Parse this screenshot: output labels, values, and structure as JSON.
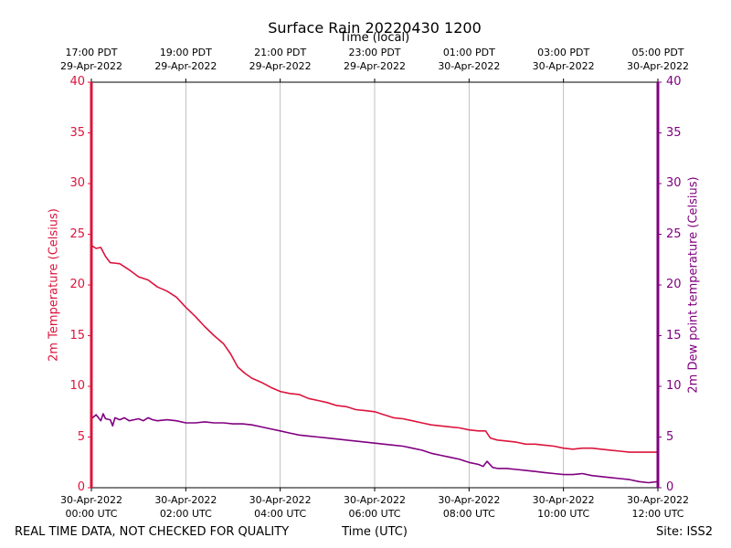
{
  "chart_data": {
    "type": "line",
    "title": "Surface Rain 20220430 1200",
    "top_axis_title": "Time (local)",
    "xlabel": "Time (UTC)",
    "ylabel_left": "2m Temperature (Celsius)",
    "ylabel_right": "2m Dew point temperature (Celsius)",
    "x_unit": "hours since 30-Apr-2022 00:00 UTC",
    "xlim": [
      0,
      12
    ],
    "ylim": [
      0,
      40
    ],
    "yticks": [
      "0",
      "5",
      "10",
      "15",
      "20",
      "25",
      "30",
      "35",
      "40"
    ],
    "grid": "vertical",
    "bottom_ticks": [
      {
        "x": 0,
        "date": "30-Apr-2022",
        "time": "00:00 UTC"
      },
      {
        "x": 2,
        "date": "30-Apr-2022",
        "time": "02:00 UTC"
      },
      {
        "x": 4,
        "date": "30-Apr-2022",
        "time": "04:00 UTC"
      },
      {
        "x": 6,
        "date": "30-Apr-2022",
        "time": "06:00 UTC"
      },
      {
        "x": 8,
        "date": "30-Apr-2022",
        "time": "08:00 UTC"
      },
      {
        "x": 10,
        "date": "30-Apr-2022",
        "time": "10:00 UTC"
      },
      {
        "x": 12,
        "date": "30-Apr-2022",
        "time": "12:00 UTC"
      }
    ],
    "top_ticks": [
      {
        "x": 0,
        "time": "17:00 PDT",
        "date": "29-Apr-2022"
      },
      {
        "x": 2,
        "time": "19:00 PDT",
        "date": "29-Apr-2022"
      },
      {
        "x": 4,
        "time": "21:00 PDT",
        "date": "29-Apr-2022"
      },
      {
        "x": 6,
        "time": "23:00 PDT",
        "date": "29-Apr-2022"
      },
      {
        "x": 8,
        "time": "01:00 PDT",
        "date": "30-Apr-2022"
      },
      {
        "x": 10,
        "time": "03:00 PDT",
        "date": "30-Apr-2022"
      },
      {
        "x": 12,
        "time": "05:00 PDT",
        "date": "30-Apr-2022"
      }
    ],
    "series": [
      {
        "name": "2m Temperature",
        "axis": "left",
        "color": "#dc143c",
        "points": [
          [
            0,
            23.9
          ],
          [
            0.1,
            23.6
          ],
          [
            0.2,
            23.7
          ],
          [
            0.3,
            22.8
          ],
          [
            0.4,
            22.2
          ],
          [
            0.6,
            22.1
          ],
          [
            0.8,
            21.5
          ],
          [
            1.0,
            20.8
          ],
          [
            1.2,
            20.5
          ],
          [
            1.4,
            19.8
          ],
          [
            1.6,
            19.4
          ],
          [
            1.8,
            18.8
          ],
          [
            2.0,
            17.8
          ],
          [
            2.2,
            16.9
          ],
          [
            2.4,
            15.9
          ],
          [
            2.6,
            15.0
          ],
          [
            2.8,
            14.2
          ],
          [
            2.95,
            13.2
          ],
          [
            3.1,
            11.9
          ],
          [
            3.25,
            11.3
          ],
          [
            3.4,
            10.8
          ],
          [
            3.6,
            10.4
          ],
          [
            3.8,
            9.9
          ],
          [
            4.0,
            9.5
          ],
          [
            4.2,
            9.3
          ],
          [
            4.4,
            9.2
          ],
          [
            4.6,
            8.8
          ],
          [
            4.8,
            8.6
          ],
          [
            5.0,
            8.4
          ],
          [
            5.2,
            8.1
          ],
          [
            5.4,
            8.0
          ],
          [
            5.6,
            7.7
          ],
          [
            5.8,
            7.6
          ],
          [
            6.0,
            7.5
          ],
          [
            6.2,
            7.2
          ],
          [
            6.4,
            6.9
          ],
          [
            6.6,
            6.8
          ],
          [
            6.8,
            6.6
          ],
          [
            7.0,
            6.4
          ],
          [
            7.2,
            6.2
          ],
          [
            7.4,
            6.1
          ],
          [
            7.6,
            6.0
          ],
          [
            7.8,
            5.9
          ],
          [
            8.0,
            5.7
          ],
          [
            8.2,
            5.6
          ],
          [
            8.35,
            5.6
          ],
          [
            8.45,
            4.9
          ],
          [
            8.6,
            4.7
          ],
          [
            8.8,
            4.6
          ],
          [
            9.0,
            4.5
          ],
          [
            9.2,
            4.3
          ],
          [
            9.4,
            4.3
          ],
          [
            9.6,
            4.2
          ],
          [
            9.8,
            4.1
          ],
          [
            10.0,
            3.9
          ],
          [
            10.2,
            3.8
          ],
          [
            10.4,
            3.9
          ],
          [
            10.6,
            3.9
          ],
          [
            10.8,
            3.8
          ],
          [
            11.0,
            3.7
          ],
          [
            11.2,
            3.6
          ],
          [
            11.4,
            3.5
          ],
          [
            11.6,
            3.5
          ],
          [
            11.8,
            3.5
          ],
          [
            12.0,
            3.5
          ]
        ]
      },
      {
        "name": "2m Dew point temperature",
        "axis": "right",
        "color": "#800080",
        "points": [
          [
            0,
            6.8
          ],
          [
            0.1,
            7.2
          ],
          [
            0.15,
            6.9
          ],
          [
            0.2,
            6.6
          ],
          [
            0.25,
            7.3
          ],
          [
            0.3,
            6.8
          ],
          [
            0.4,
            6.7
          ],
          [
            0.45,
            6.1
          ],
          [
            0.5,
            6.9
          ],
          [
            0.6,
            6.7
          ],
          [
            0.7,
            6.9
          ],
          [
            0.8,
            6.6
          ],
          [
            0.9,
            6.7
          ],
          [
            1.0,
            6.8
          ],
          [
            1.1,
            6.6
          ],
          [
            1.2,
            6.9
          ],
          [
            1.3,
            6.7
          ],
          [
            1.4,
            6.6
          ],
          [
            1.6,
            6.7
          ],
          [
            1.8,
            6.6
          ],
          [
            2.0,
            6.4
          ],
          [
            2.2,
            6.4
          ],
          [
            2.4,
            6.5
          ],
          [
            2.6,
            6.4
          ],
          [
            2.8,
            6.4
          ],
          [
            3.0,
            6.3
          ],
          [
            3.2,
            6.3
          ],
          [
            3.4,
            6.2
          ],
          [
            3.6,
            6.0
          ],
          [
            3.8,
            5.8
          ],
          [
            4.0,
            5.6
          ],
          [
            4.2,
            5.4
          ],
          [
            4.4,
            5.2
          ],
          [
            4.6,
            5.1
          ],
          [
            4.8,
            5.0
          ],
          [
            5.0,
            4.9
          ],
          [
            5.2,
            4.8
          ],
          [
            5.4,
            4.7
          ],
          [
            5.6,
            4.6
          ],
          [
            5.8,
            4.5
          ],
          [
            6.0,
            4.4
          ],
          [
            6.2,
            4.3
          ],
          [
            6.4,
            4.2
          ],
          [
            6.6,
            4.1
          ],
          [
            6.8,
            3.9
          ],
          [
            7.0,
            3.7
          ],
          [
            7.2,
            3.4
          ],
          [
            7.4,
            3.2
          ],
          [
            7.6,
            3.0
          ],
          [
            7.8,
            2.8
          ],
          [
            8.0,
            2.5
          ],
          [
            8.2,
            2.3
          ],
          [
            8.3,
            2.1
          ],
          [
            8.38,
            2.6
          ],
          [
            8.5,
            2.0
          ],
          [
            8.6,
            1.9
          ],
          [
            8.8,
            1.9
          ],
          [
            9.0,
            1.8
          ],
          [
            9.2,
            1.7
          ],
          [
            9.4,
            1.6
          ],
          [
            9.6,
            1.5
          ],
          [
            9.8,
            1.4
          ],
          [
            10.0,
            1.3
          ],
          [
            10.2,
            1.3
          ],
          [
            10.4,
            1.4
          ],
          [
            10.6,
            1.2
          ],
          [
            10.8,
            1.1
          ],
          [
            11.0,
            1.0
          ],
          [
            11.2,
            0.9
          ],
          [
            11.4,
            0.8
          ],
          [
            11.6,
            0.6
          ],
          [
            11.8,
            0.5
          ],
          [
            12.0,
            0.6
          ]
        ]
      }
    ]
  },
  "footer": {
    "note": "REAL TIME DATA, NOT CHECKED FOR QUALITY",
    "site": "Site: ISS2"
  }
}
